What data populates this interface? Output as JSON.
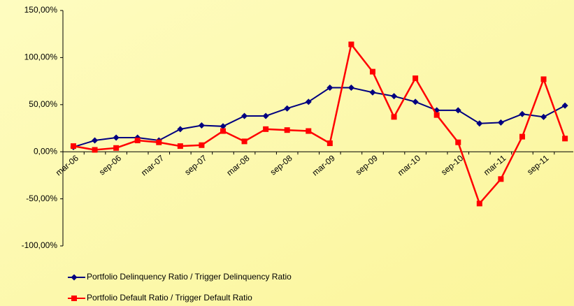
{
  "chart_data": {
    "type": "line",
    "categories": [
      "mar-06",
      null,
      "sep-06",
      null,
      "mar-07",
      null,
      "sep-07",
      null,
      "mar-08",
      null,
      "sep-08",
      null,
      "mar-09",
      null,
      "sep-09",
      null,
      "mar-10",
      null,
      "sep-10",
      null,
      "mar-11",
      null,
      "sep-11",
      null
    ],
    "series": [
      {
        "name": "Portfolio Delinquency Ratio / Trigger Delinquency Ratio",
        "color": "#000080",
        "marker": "diamond",
        "values": [
          5,
          12,
          15,
          15,
          12,
          24,
          28,
          27,
          38,
          38,
          46,
          53,
          68,
          68,
          63,
          59,
          53,
          44,
          44,
          30,
          31,
          40,
          37,
          49
        ]
      },
      {
        "name": "Portfolio Default Ratio / Trigger Default Ratio",
        "color": "#ff0000",
        "marker": "square",
        "values": [
          6,
          2,
          4,
          12,
          10,
          6,
          7,
          22,
          11,
          24,
          23,
          22,
          9,
          114,
          85,
          37,
          78,
          39,
          10,
          -55,
          -29,
          16,
          77,
          14
        ]
      }
    ],
    "ylim": [
      -100,
      150
    ],
    "yticks": [
      {
        "value": -100,
        "label": "-100,00%"
      },
      {
        "value": -50,
        "label": "-50,00%"
      },
      {
        "value": 0,
        "label": "0,00%"
      },
      {
        "value": 50,
        "label": "50,00%"
      },
      {
        "value": 100,
        "label": "100,00%"
      },
      {
        "value": 150,
        "label": "150,00%"
      }
    ],
    "grid": false,
    "legend": "bottom"
  }
}
